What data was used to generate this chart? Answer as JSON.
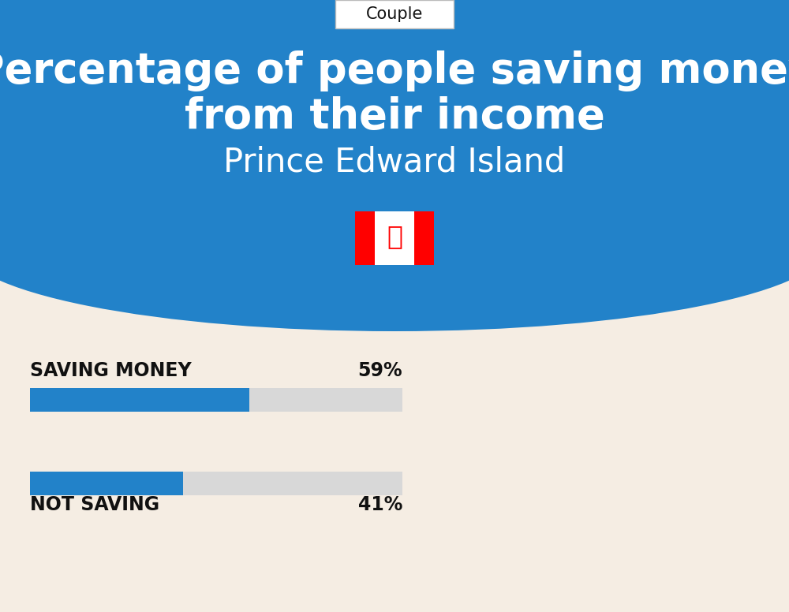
{
  "title_line1": "Percentage of people saving money",
  "title_line2": "from their income",
  "subtitle": "Prince Edward Island",
  "tab_label": "Couple",
  "saving_label": "SAVING MONEY",
  "saving_value": 59,
  "saving_pct_text": "59%",
  "not_saving_label": "NOT SAVING",
  "not_saving_value": 41,
  "not_saving_pct_text": "41%",
  "bar_color": "#2282C9",
  "bar_bg_color": "#D8D8D8",
  "bg_color_top": "#2282C9",
  "bg_color_bottom": "#F5EDE3",
  "title_color": "#FFFFFF",
  "subtitle_color": "#FFFFFF",
  "label_color": "#111111",
  "tab_bg": "#FFFFFF",
  "tab_text_color": "#111111",
  "flag_red": "#FF0000",
  "flag_white": "#FFFFFF"
}
